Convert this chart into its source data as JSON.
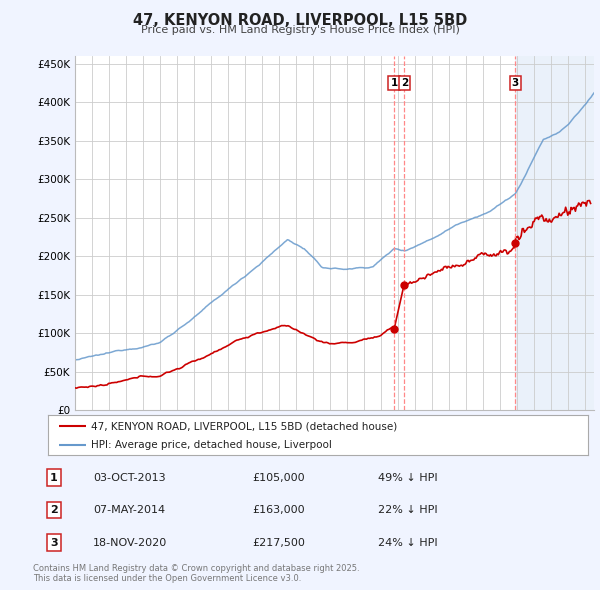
{
  "title": "47, KENYON ROAD, LIVERPOOL, L15 5BD",
  "subtitle": "Price paid vs. HM Land Registry's House Price Index (HPI)",
  "ylabel_ticks": [
    "£0",
    "£50K",
    "£100K",
    "£150K",
    "£200K",
    "£250K",
    "£300K",
    "£350K",
    "£400K",
    "£450K"
  ],
  "ytick_values": [
    0,
    50000,
    100000,
    150000,
    200000,
    250000,
    300000,
    350000,
    400000,
    450000
  ],
  "ylim": [
    0,
    460000
  ],
  "xlim_start": 1995.0,
  "xlim_end": 2025.5,
  "sale_points": [
    {
      "label": "1",
      "date": 2013.75,
      "price": 105000,
      "display": "03-OCT-2013",
      "price_str": "£105,000",
      "pct": "49% ↓ HPI"
    },
    {
      "label": "2",
      "date": 2014.35,
      "price": 163000,
      "display": "07-MAY-2014",
      "price_str": "£163,000",
      "pct": "22% ↓ HPI"
    },
    {
      "label": "3",
      "date": 2020.88,
      "price": 217500,
      "display": "18-NOV-2020",
      "price_str": "£217,500",
      "pct": "24% ↓ HPI"
    }
  ],
  "legend_property": "47, KENYON ROAD, LIVERPOOL, L15 5BD (detached house)",
  "legend_hpi": "HPI: Average price, detached house, Liverpool",
  "footnote": "Contains HM Land Registry data © Crown copyright and database right 2025.\nThis data is licensed under the Open Government Licence v3.0.",
  "property_color": "#cc0000",
  "hpi_color": "#6699cc",
  "vline_color": "#ff8888",
  "bg_color": "#f0f4ff",
  "plot_bg": "#ffffff",
  "shade_color": "#dde8f8",
  "grid_color": "#cccccc"
}
